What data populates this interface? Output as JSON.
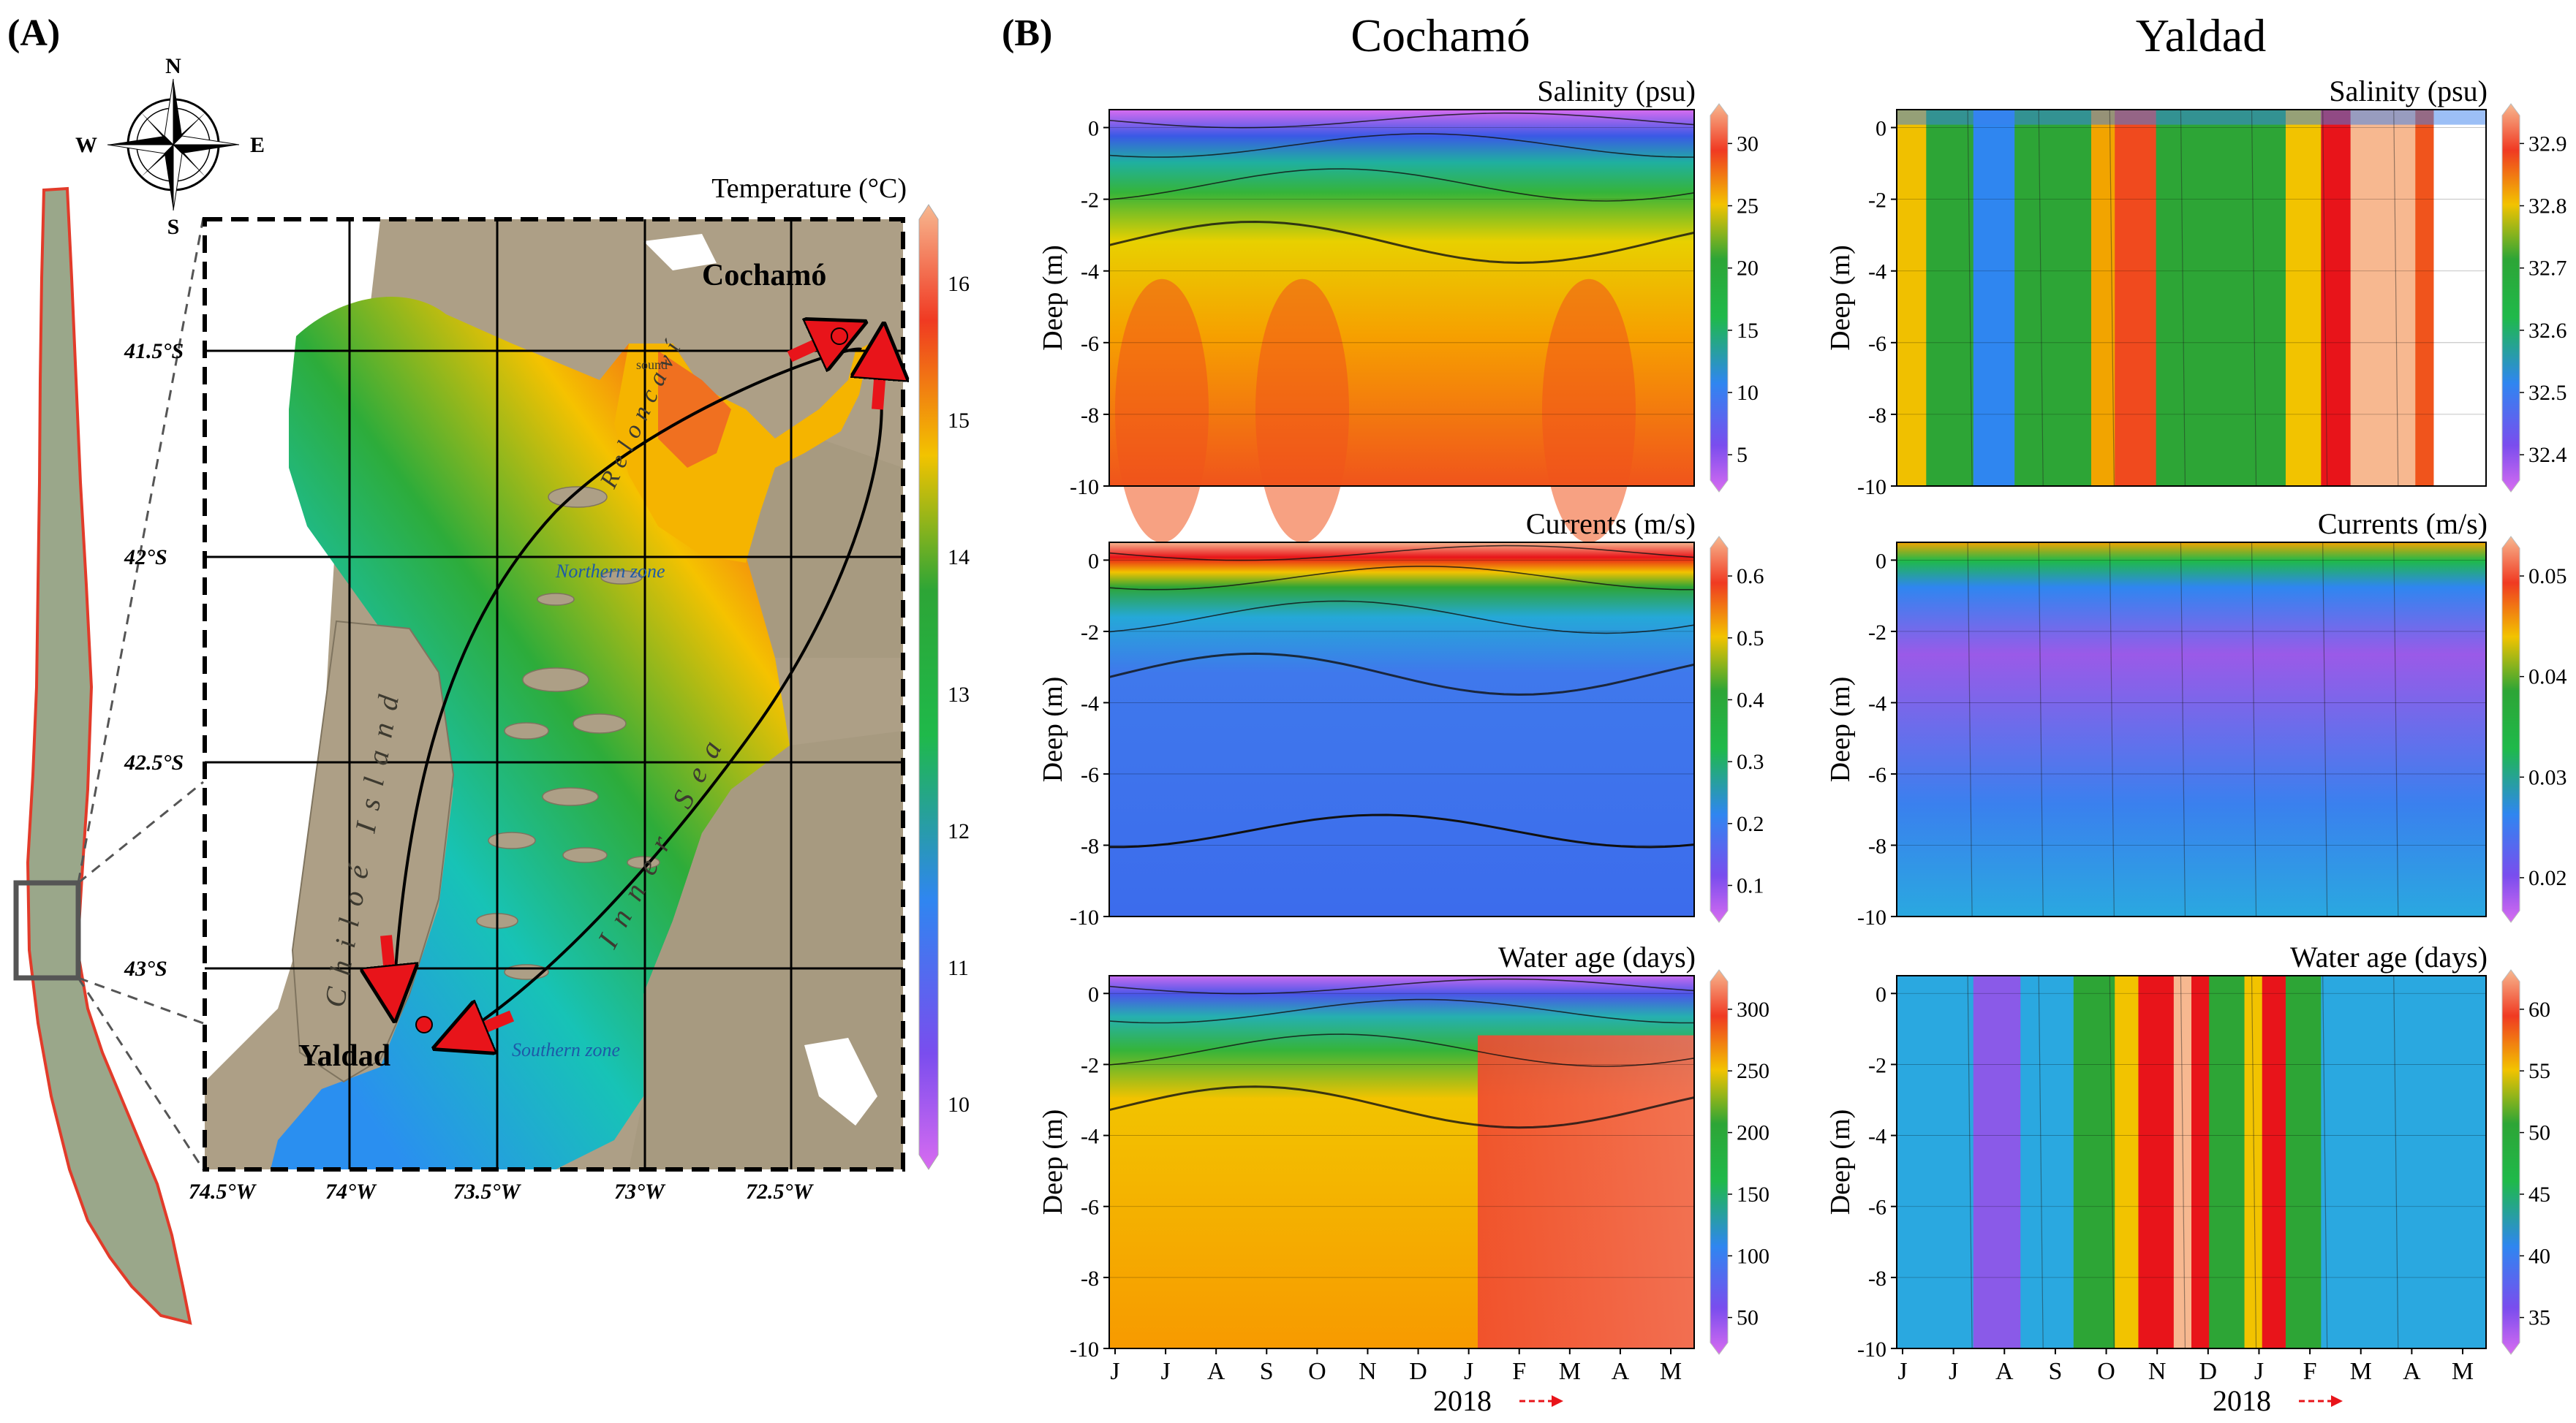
{
  "panel_a": {
    "label": "(A)",
    "compass": {
      "n": "N",
      "s": "S",
      "e": "E",
      "w": "W"
    },
    "colorbar_title": "Temperature (°C)",
    "colorbar_ticks": [
      "16",
      "15",
      "14",
      "13",
      "12",
      "11",
      "10"
    ],
    "lat_labels": [
      "41.5°S",
      "42°S",
      "42.5°S",
      "43°S"
    ],
    "lon_labels": [
      "74.5°W",
      "74°W",
      "73.5°W",
      "73°W",
      "72.5°W"
    ],
    "places": {
      "cochamo": "Cochamó",
      "yaldad": "Yaldad",
      "chiloe": "Chiloé Island",
      "inner_sea": "Inner Sea",
      "reloncavi": "Reloncaví",
      "sound": "sound",
      "northern": "Northern zone",
      "southern": "Southern zone"
    }
  },
  "panel_b": {
    "label": "(B)",
    "sites": [
      "Cochamó",
      "Yaldad"
    ],
    "ylabel": "Deep (m)",
    "x_months": [
      "J",
      "J",
      "A",
      "S",
      "O",
      "N",
      "D",
      "J",
      "F",
      "M",
      "A",
      "M"
    ],
    "x_year": "2018",
    "plots": [
      {
        "site": "Cochamó",
        "title": "Salinity (psu)",
        "cbar": [
          "30",
          "25",
          "20",
          "15",
          "10",
          "5"
        ]
      },
      {
        "site": "Yaldad",
        "title": "Salinity (psu)",
        "cbar": [
          "32.9",
          "32.8",
          "32.7",
          "32.6",
          "32.5",
          "32.4"
        ]
      },
      {
        "site": "Cochamó",
        "title": "Currents (m/s)",
        "cbar": [
          "0.6",
          "0.5",
          "0.4",
          "0.3",
          "0.2",
          "0.1"
        ]
      },
      {
        "site": "Yaldad",
        "title": "Currents (m/s)",
        "cbar": [
          "0.05",
          "0.04",
          "0.03",
          "0.02"
        ]
      },
      {
        "site": "Cochamó",
        "title": "Water age (days)",
        "cbar": [
          "300",
          "250",
          "200",
          "150",
          "100",
          "50"
        ]
      },
      {
        "site": "Yaldad",
        "title": "Water age (days)",
        "cbar": [
          "60",
          "55",
          "50",
          "45",
          "40",
          "35"
        ]
      }
    ],
    "y_ticks": [
      "0",
      "-2",
      "-4",
      "-6",
      "-8",
      "-10"
    ]
  },
  "chart_data": [
    {
      "type": "heatmap",
      "title": "Salinity (psu)",
      "site": "Cochamó",
      "ylabel": "Deep (m)",
      "ylim": [
        -10,
        0.5
      ],
      "x": [
        "J",
        "J",
        "A",
        "S",
        "O",
        "N",
        "D",
        "J",
        "F",
        "M",
        "A",
        "M"
      ],
      "colorbar_range": [
        2,
        33
      ],
      "note_values": {
        "surface": 5,
        "depth_2m": 27.5,
        "bottom": 30
      }
    },
    {
      "type": "heatmap",
      "title": "Salinity (psu)",
      "site": "Yaldad",
      "ylabel": "Deep (m)",
      "ylim": [
        -10,
        0.5
      ],
      "x": [
        "J",
        "J",
        "A",
        "S",
        "O",
        "N",
        "D",
        "J",
        "F",
        "M",
        "A",
        "M"
      ],
      "colorbar_range": [
        32.4,
        32.95
      ]
    },
    {
      "type": "heatmap",
      "title": "Currents (m/s)",
      "site": "Cochamó",
      "ylabel": "Deep (m)",
      "ylim": [
        -10,
        0.5
      ],
      "x": [
        "J",
        "J",
        "A",
        "S",
        "O",
        "N",
        "D",
        "J",
        "F",
        "M",
        "A",
        "M"
      ],
      "colorbar_range": [
        0.05,
        0.65
      ]
    },
    {
      "type": "heatmap",
      "title": "Currents (m/s)",
      "site": "Yaldad",
      "ylabel": "Deep (m)",
      "ylim": [
        -10,
        0.5
      ],
      "x": [
        "J",
        "J",
        "A",
        "S",
        "O",
        "N",
        "D",
        "J",
        "F",
        "M",
        "A",
        "M"
      ],
      "colorbar_range": [
        0.02,
        0.052
      ]
    },
    {
      "type": "heatmap",
      "title": "Water age (days)",
      "site": "Cochamó",
      "ylabel": "Deep (m)",
      "ylim": [
        -10,
        0.5
      ],
      "x": [
        "J",
        "J",
        "A",
        "S",
        "O",
        "N",
        "D",
        "J",
        "F",
        "M",
        "A",
        "M"
      ],
      "colorbar_range": [
        30,
        320
      ]
    },
    {
      "type": "heatmap",
      "title": "Water age (days)",
      "site": "Yaldad",
      "ylabel": "Deep (m)",
      "ylim": [
        -10,
        0.5
      ],
      "x": [
        "J",
        "J",
        "A",
        "S",
        "O",
        "N",
        "D",
        "J",
        "F",
        "M",
        "A",
        "M"
      ],
      "colorbar_range": [
        32,
        63
      ]
    }
  ],
  "colors": {
    "land": "#b0a58f",
    "sea_warm": "#f5a623",
    "arrow": "#e8141a"
  }
}
